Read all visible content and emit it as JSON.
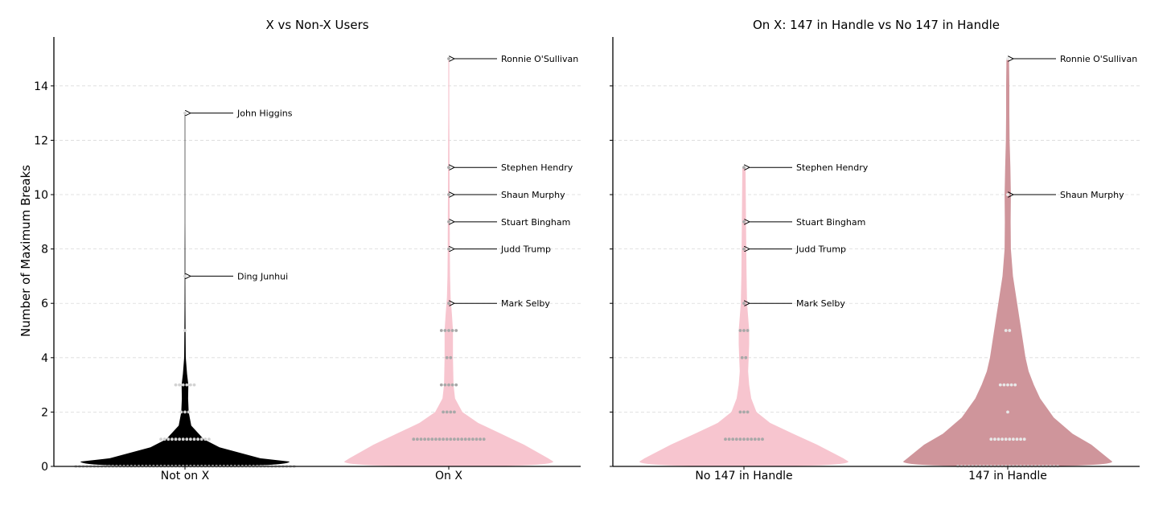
{
  "figure": {
    "ylabel": "Number of Maximum Breaks"
  },
  "chart_data": [
    {
      "type": "violin",
      "title": "X vs Non-X Users",
      "ylabel": "Number of Maximum Breaks",
      "ylim": [
        0,
        15.8
      ],
      "yticks": [
        0,
        2,
        4,
        6,
        8,
        10,
        12,
        14
      ],
      "grid": "y-dashed",
      "categories": [
        "Not on X",
        "On X"
      ],
      "series": [
        {
          "color": "#000000",
          "dot_color": "#d3d3d3",
          "dot_counts": [
            {
              "y": 0,
              "n": 60
            },
            {
              "y": 1,
              "n": 14
            },
            {
              "y": 2,
              "n": 3
            },
            {
              "y": 3,
              "n": 6
            },
            {
              "y": 5,
              "n": 1
            },
            {
              "y": 7,
              "n": 1
            },
            {
              "y": 13,
              "n": 1
            }
          ],
          "density": [
            [
              0,
              1.0
            ],
            [
              0.3,
              0.72
            ],
            [
              0.7,
              0.33
            ],
            [
              1,
              0.18
            ],
            [
              1.5,
              0.06
            ],
            [
              2,
              0.035
            ],
            [
              2.5,
              0.03
            ],
            [
              3,
              0.032
            ],
            [
              3.4,
              0.02
            ],
            [
              4,
              0.008
            ],
            [
              5,
              0.005
            ],
            [
              6,
              0.004
            ],
            [
              7,
              0.003
            ],
            [
              8,
              0.003
            ],
            [
              9,
              0.002
            ],
            [
              10,
              0.002
            ],
            [
              11,
              0.002
            ],
            [
              12,
              0.002
            ],
            [
              13,
              0.002
            ]
          ],
          "labels": [
            {
              "y": 13,
              "text": "John Higgins"
            },
            {
              "y": 7,
              "text": "Ding Junhui"
            }
          ]
        },
        {
          "color": "#f7c5cf",
          "dot_color": "#a8a8a8",
          "dot_counts": [
            {
              "y": 1,
              "n": 20
            },
            {
              "y": 2,
              "n": 4
            },
            {
              "y": 3,
              "n": 5
            },
            {
              "y": 4,
              "n": 2
            },
            {
              "y": 5,
              "n": 5
            },
            {
              "y": 6,
              "n": 1
            },
            {
              "y": 8,
              "n": 1
            },
            {
              "y": 9,
              "n": 1
            },
            {
              "y": 10,
              "n": 1
            },
            {
              "y": 11,
              "n": 1
            },
            {
              "y": 15,
              "n": 1
            }
          ],
          "density": [
            [
              0,
              1.0
            ],
            [
              0.3,
              0.95
            ],
            [
              0.8,
              0.72
            ],
            [
              1.2,
              0.5
            ],
            [
              1.6,
              0.28
            ],
            [
              2,
              0.13
            ],
            [
              2.5,
              0.06
            ],
            [
              3,
              0.045
            ],
            [
              4,
              0.04
            ],
            [
              5,
              0.04
            ],
            [
              5.6,
              0.03
            ],
            [
              6.2,
              0.018
            ],
            [
              7,
              0.012
            ],
            [
              8,
              0.01
            ],
            [
              9,
              0.009
            ],
            [
              10,
              0.008
            ],
            [
              11,
              0.007
            ],
            [
              12,
              0.006
            ],
            [
              13,
              0.005
            ],
            [
              14,
              0.005
            ],
            [
              15,
              0.005
            ]
          ],
          "labels": [
            {
              "y": 15,
              "text": "Ronnie O'Sullivan"
            },
            {
              "y": 11,
              "text": "Stephen Hendry"
            },
            {
              "y": 10,
              "text": "Shaun Murphy"
            },
            {
              "y": 9,
              "text": "Stuart Bingham"
            },
            {
              "y": 8,
              "text": "Judd Trump"
            },
            {
              "y": 6,
              "text": "Mark Selby"
            }
          ]
        }
      ]
    },
    {
      "type": "violin",
      "title": "On X: 147 in Handle vs No 147 in Handle",
      "ylim": [
        0,
        15.8
      ],
      "yticks": [
        0,
        2,
        4,
        6,
        8,
        10,
        12,
        14
      ],
      "grid": "y-dashed",
      "categories": [
        "No 147 in Handle",
        "147 in Handle"
      ],
      "series": [
        {
          "color": "#f7c5cf",
          "dot_color": "#a8a8a8",
          "dot_counts": [
            {
              "y": 1,
              "n": 11
            },
            {
              "y": 2,
              "n": 3
            },
            {
              "y": 4,
              "n": 2
            },
            {
              "y": 5,
              "n": 3
            },
            {
              "y": 6,
              "n": 1
            },
            {
              "y": 8,
              "n": 1
            },
            {
              "y": 9,
              "n": 1
            },
            {
              "y": 11,
              "n": 1
            }
          ],
          "density": [
            [
              0,
              1.0
            ],
            [
              0.3,
              0.95
            ],
            [
              0.8,
              0.7
            ],
            [
              1.2,
              0.47
            ],
            [
              1.6,
              0.25
            ],
            [
              2,
              0.12
            ],
            [
              2.5,
              0.07
            ],
            [
              3,
              0.05
            ],
            [
              3.5,
              0.04
            ],
            [
              4,
              0.045
            ],
            [
              4.5,
              0.05
            ],
            [
              5,
              0.05
            ],
            [
              5.5,
              0.04
            ],
            [
              6,
              0.03
            ],
            [
              7,
              0.025
            ],
            [
              8,
              0.022
            ],
            [
              9,
              0.02
            ],
            [
              10,
              0.018
            ],
            [
              11,
              0.015
            ]
          ],
          "labels": [
            {
              "y": 11,
              "text": "Stephen Hendry"
            },
            {
              "y": 9,
              "text": "Stuart Bingham"
            },
            {
              "y": 8,
              "text": "Judd Trump"
            },
            {
              "y": 6,
              "text": "Mark Selby"
            }
          ]
        },
        {
          "color": "#cf959b",
          "dot_color": "#e8e8e8",
          "dot_counts": [
            {
              "y": 0,
              "n": 28
            },
            {
              "y": 1,
              "n": 10
            },
            {
              "y": 2,
              "n": 1
            },
            {
              "y": 3,
              "n": 5
            },
            {
              "y": 5,
              "n": 2
            },
            {
              "y": 10,
              "n": 1
            },
            {
              "y": 15,
              "n": 1
            }
          ],
          "density": [
            [
              0,
              1.0
            ],
            [
              0.3,
              0.96
            ],
            [
              0.8,
              0.8
            ],
            [
              1.2,
              0.62
            ],
            [
              1.8,
              0.44
            ],
            [
              2.5,
              0.31
            ],
            [
              3,
              0.25
            ],
            [
              3.5,
              0.2
            ],
            [
              4,
              0.17
            ],
            [
              5,
              0.13
            ],
            [
              6,
              0.09
            ],
            [
              7,
              0.05
            ],
            [
              8,
              0.03
            ],
            [
              9,
              0.028
            ],
            [
              10,
              0.03
            ],
            [
              11,
              0.025
            ],
            [
              12,
              0.018
            ],
            [
              13,
              0.015
            ],
            [
              14,
              0.015
            ],
            [
              15,
              0.012
            ]
          ],
          "labels": [
            {
              "y": 15,
              "text": "Ronnie O'Sullivan"
            },
            {
              "y": 10,
              "text": "Shaun Murphy"
            }
          ]
        }
      ]
    }
  ]
}
